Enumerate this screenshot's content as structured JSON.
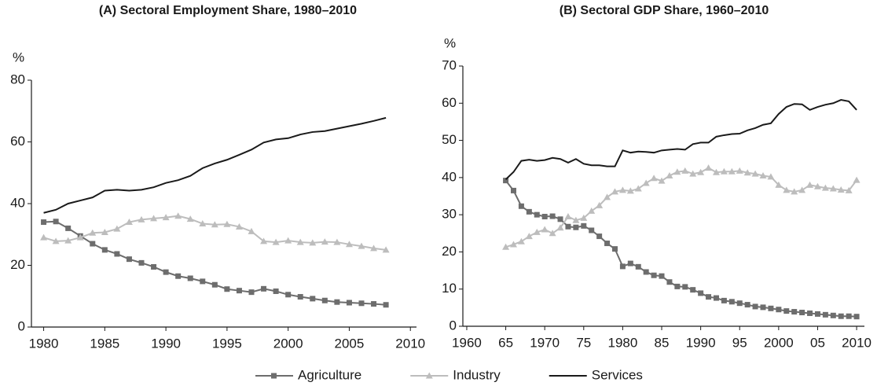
{
  "chart_data": [
    {
      "type": "line",
      "title": "(A) Sectoral Employment  Share, 1980–2010",
      "y_label": "%",
      "x": [
        1980,
        1981,
        1982,
        1983,
        1984,
        1985,
        1986,
        1987,
        1988,
        1989,
        1990,
        1991,
        1992,
        1993,
        1994,
        1995,
        1996,
        1997,
        1998,
        1999,
        2000,
        2001,
        2002,
        2003,
        2004,
        2005,
        2006,
        2007,
        2008
      ],
      "xlim": [
        1979,
        2010.5
      ],
      "xticks": [
        1980,
        1985,
        1990,
        1995,
        2000,
        2005,
        2010
      ],
      "ylim": [
        0,
        80
      ],
      "yticks": [
        0,
        20,
        40,
        60,
        80
      ],
      "series": [
        {
          "name": "Agriculture",
          "color": "#6d6d6d",
          "marker": "square",
          "values": [
            34,
            34.2,
            32,
            29.5,
            27,
            25,
            23.7,
            22,
            20.8,
            19.5,
            17.8,
            16.5,
            15.8,
            14.8,
            13.7,
            12.3,
            11.8,
            11.3,
            12.4,
            11.6,
            10.5,
            9.8,
            9.2,
            8.6,
            8.1,
            7.9,
            7.7,
            7.5,
            7.2
          ]
        },
        {
          "name": "Industry",
          "color": "#bdbdbd",
          "marker": "triangle",
          "values": [
            29,
            27.8,
            28,
            29,
            30.5,
            30.7,
            31.8,
            34,
            34.8,
            35.2,
            35.5,
            36,
            35,
            33.5,
            33.2,
            33.3,
            32.5,
            31,
            27.8,
            27.5,
            28,
            27.5,
            27.3,
            27.6,
            27.5,
            26.8,
            26.2,
            25.5,
            25
          ]
        },
        {
          "name": "Services",
          "color": "#1a1a1a",
          "values": [
            37,
            38,
            40,
            41,
            42,
            44.2,
            44.5,
            44.2,
            44.5,
            45.3,
            46.7,
            47.6,
            49,
            51.5,
            53,
            54.2,
            55.8,
            57.5,
            59.8,
            60.8,
            61.2,
            62.4,
            63.2,
            63.5,
            64.3,
            65.1,
            65.9,
            66.8,
            67.8
          ]
        }
      ]
    },
    {
      "type": "line",
      "title": "(B) Sectoral GDP Share, 1960–2010",
      "y_label": "%",
      "x": [
        1965,
        1966,
        1967,
        1968,
        1969,
        1970,
        1971,
        1972,
        1973,
        1974,
        1975,
        1976,
        1977,
        1978,
        1979,
        1980,
        1981,
        1982,
        1983,
        1984,
        1985,
        1986,
        1987,
        1988,
        1989,
        1990,
        1991,
        1992,
        1993,
        1994,
        1995,
        1996,
        1997,
        1998,
        1999,
        2000,
        2001,
        2002,
        2003,
        2004,
        2005,
        2006,
        2007,
        2008,
        2009,
        2010
      ],
      "xlim": [
        1959.5,
        2011
      ],
      "xticks": [
        1960,
        {
          "value": 1965,
          "label": "65"
        },
        1970,
        {
          "value": 1975,
          "label": "75"
        },
        1980,
        {
          "value": 1985,
          "label": "85"
        },
        1990,
        {
          "value": 1995,
          "label": "95"
        },
        2000,
        {
          "value": 2005,
          "label": "05"
        },
        2010
      ],
      "ylim": [
        0,
        70
      ],
      "yticks": [
        0,
        10,
        20,
        30,
        40,
        50,
        60,
        70
      ],
      "series": [
        {
          "color": "#6d6d6d",
          "marker": "square",
          "values": [
            39.2,
            36.5,
            32.3,
            30.8,
            30,
            29.5,
            29.6,
            28.8,
            26.8,
            26.6,
            27,
            25.8,
            24.2,
            22.3,
            20.8,
            16.1,
            16.9,
            16,
            14.6,
            13.7,
            13.5,
            11.9,
            10.7,
            10.6,
            9.8,
            8.9,
            7.9,
            7.6,
            6.9,
            6.6,
            6.2,
            5.8,
            5.3,
            5.1,
            4.8,
            4.5,
            4.1,
            3.9,
            3.7,
            3.5,
            3.3,
            3.1,
            2.9,
            2.7,
            2.7,
            2.6
          ]
        },
        {
          "color": "#bdbdbd",
          "marker": "triangle",
          "values": [
            21.3,
            22,
            22.8,
            24.2,
            25.3,
            26,
            25,
            26.5,
            29.5,
            28.5,
            29.1,
            31,
            32.5,
            34.7,
            36.2,
            36.6,
            36.4,
            37,
            38.5,
            39.8,
            39.1,
            40.5,
            41.5,
            41.8,
            41,
            41.4,
            42.6,
            41.4,
            41.6,
            41.6,
            41.8,
            41.3,
            41,
            40.5,
            40.2,
            38,
            36.6,
            36.2,
            36.6,
            38,
            37.6,
            37.2,
            37,
            36.7,
            36.5,
            39.3
          ]
        },
        {
          "color": "#1a1a1a",
          "values": [
            39.5,
            41.5,
            44.5,
            44.8,
            44.5,
            44.7,
            45.3,
            45,
            44,
            45,
            43.7,
            43.3,
            43.3,
            43,
            43,
            47.3,
            46.7,
            47,
            46.9,
            46.7,
            47.3,
            47.5,
            47.7,
            47.5,
            49,
            49.4,
            49.4,
            51,
            51.4,
            51.7,
            51.8,
            52.7,
            53.3,
            54.2,
            54.6,
            57.1,
            59,
            59.8,
            59.7,
            58.2,
            59,
            59.6,
            60,
            60.9,
            60.5,
            58.2
          ]
        }
      ]
    }
  ]
}
